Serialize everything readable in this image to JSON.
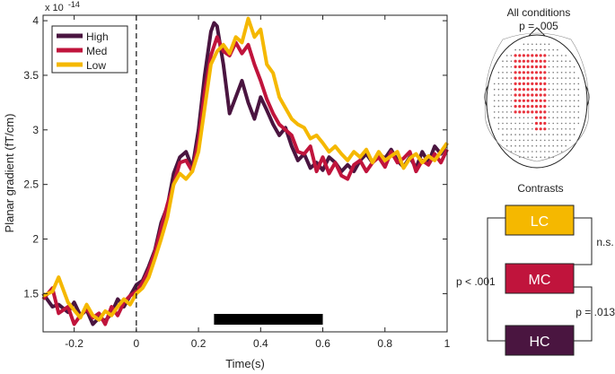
{
  "chart_data": {
    "type": "line",
    "title": "",
    "xlabel": "Time(s)",
    "ylabel": "Planar gradient (fT/cm)",
    "exponent_label": "x 10",
    "exponent_power": "-14",
    "xlim": [
      -0.3,
      1.0
    ],
    "ylim": [
      1.15,
      4.05
    ],
    "xticks": [
      -0.2,
      0,
      0.2,
      0.4,
      0.6,
      0.8,
      1
    ],
    "xtick_labels": [
      "-0.2",
      "0",
      "0.2",
      "0.4",
      "0.6",
      "0.8",
      "1"
    ],
    "yticks": [
      1.5,
      2,
      2.5,
      3,
      3.5,
      4
    ],
    "ytick_labels": [
      "1.5",
      "2",
      "2.5",
      "3",
      "3.5",
      "4"
    ],
    "stimulus_onset": 0,
    "significance_bar": [
      0.25,
      0.6
    ],
    "series": [
      {
        "name": "High",
        "color": "#4a1540",
        "x": [
          -0.3,
          -0.27,
          -0.25,
          -0.22,
          -0.2,
          -0.18,
          -0.16,
          -0.14,
          -0.12,
          -0.1,
          -0.08,
          -0.06,
          -0.04,
          -0.02,
          0,
          0.02,
          0.04,
          0.06,
          0.08,
          0.1,
          0.12,
          0.14,
          0.16,
          0.18,
          0.2,
          0.22,
          0.24,
          0.25,
          0.26,
          0.28,
          0.3,
          0.32,
          0.34,
          0.36,
          0.38,
          0.4,
          0.42,
          0.44,
          0.46,
          0.48,
          0.5,
          0.52,
          0.54,
          0.56,
          0.58,
          0.6,
          0.62,
          0.64,
          0.66,
          0.68,
          0.7,
          0.72,
          0.74,
          0.76,
          0.78,
          0.8,
          0.82,
          0.84,
          0.86,
          0.88,
          0.9,
          0.92,
          0.94,
          0.96,
          0.98,
          1.0
        ],
        "y": [
          1.5,
          1.38,
          1.4,
          1.33,
          1.42,
          1.3,
          1.35,
          1.22,
          1.28,
          1.25,
          1.32,
          1.45,
          1.38,
          1.48,
          1.58,
          1.62,
          1.75,
          1.9,
          2.15,
          2.3,
          2.6,
          2.75,
          2.8,
          2.65,
          3.0,
          3.5,
          3.9,
          3.98,
          3.95,
          3.6,
          3.15,
          3.3,
          3.45,
          3.25,
          3.1,
          3.3,
          3.18,
          3.05,
          2.95,
          3.02,
          2.85,
          2.72,
          2.78,
          2.65,
          2.7,
          2.63,
          2.75,
          2.7,
          2.62,
          2.68,
          2.62,
          2.72,
          2.78,
          2.7,
          2.78,
          2.74,
          2.82,
          2.72,
          2.66,
          2.75,
          2.65,
          2.8,
          2.7,
          2.85,
          2.78,
          2.88
        ]
      },
      {
        "name": "Med",
        "color": "#c0143c",
        "x": [
          -0.3,
          -0.27,
          -0.25,
          -0.22,
          -0.2,
          -0.18,
          -0.16,
          -0.14,
          -0.12,
          -0.1,
          -0.08,
          -0.06,
          -0.04,
          -0.02,
          0,
          0.02,
          0.04,
          0.06,
          0.08,
          0.1,
          0.12,
          0.14,
          0.16,
          0.18,
          0.2,
          0.22,
          0.24,
          0.26,
          0.28,
          0.3,
          0.32,
          0.34,
          0.36,
          0.38,
          0.4,
          0.42,
          0.44,
          0.46,
          0.48,
          0.5,
          0.52,
          0.54,
          0.56,
          0.58,
          0.6,
          0.62,
          0.64,
          0.66,
          0.68,
          0.7,
          0.72,
          0.74,
          0.76,
          0.78,
          0.8,
          0.82,
          0.84,
          0.86,
          0.88,
          0.9,
          0.92,
          0.94,
          0.96,
          0.98,
          1.0
        ],
        "y": [
          1.45,
          1.55,
          1.32,
          1.38,
          1.22,
          1.3,
          1.36,
          1.28,
          1.32,
          1.22,
          1.38,
          1.3,
          1.42,
          1.48,
          1.52,
          1.6,
          1.72,
          1.88,
          2.1,
          2.32,
          2.5,
          2.7,
          2.72,
          2.62,
          2.9,
          3.35,
          3.68,
          3.85,
          3.72,
          3.68,
          3.8,
          3.7,
          3.78,
          3.6,
          3.45,
          3.28,
          3.15,
          3.05,
          3.0,
          2.95,
          2.8,
          2.78,
          2.85,
          2.62,
          2.75,
          2.6,
          2.7,
          2.58,
          2.55,
          2.68,
          2.72,
          2.62,
          2.7,
          2.75,
          2.66,
          2.8,
          2.7,
          2.74,
          2.8,
          2.62,
          2.72,
          2.68,
          2.78,
          2.7,
          2.82
        ]
      },
      {
        "name": "Low",
        "color": "#f5b800",
        "x": [
          -0.3,
          -0.27,
          -0.25,
          -0.22,
          -0.2,
          -0.18,
          -0.16,
          -0.14,
          -0.12,
          -0.1,
          -0.08,
          -0.06,
          -0.04,
          -0.02,
          0,
          0.02,
          0.04,
          0.06,
          0.08,
          0.1,
          0.12,
          0.14,
          0.16,
          0.18,
          0.2,
          0.22,
          0.24,
          0.26,
          0.28,
          0.3,
          0.32,
          0.34,
          0.36,
          0.38,
          0.4,
          0.42,
          0.44,
          0.46,
          0.48,
          0.5,
          0.52,
          0.54,
          0.56,
          0.58,
          0.6,
          0.62,
          0.64,
          0.66,
          0.68,
          0.7,
          0.72,
          0.74,
          0.76,
          0.78,
          0.8,
          0.82,
          0.84,
          0.86,
          0.88,
          0.9,
          0.92,
          0.94,
          0.96,
          0.98,
          1.0
        ],
        "y": [
          1.48,
          1.52,
          1.65,
          1.42,
          1.35,
          1.28,
          1.4,
          1.3,
          1.26,
          1.34,
          1.3,
          1.38,
          1.45,
          1.4,
          1.5,
          1.55,
          1.65,
          1.82,
          2.0,
          2.2,
          2.5,
          2.6,
          2.55,
          2.62,
          2.8,
          3.2,
          3.6,
          3.72,
          3.78,
          3.7,
          3.85,
          3.8,
          4.02,
          3.85,
          3.92,
          3.6,
          3.52,
          3.3,
          3.2,
          3.1,
          3.05,
          3.02,
          2.92,
          2.95,
          2.88,
          2.8,
          2.85,
          2.78,
          2.72,
          2.8,
          2.75,
          2.82,
          2.7,
          2.8,
          2.72,
          2.76,
          2.8,
          2.65,
          2.74,
          2.78,
          2.7,
          2.76,
          2.72,
          2.8,
          2.88
        ]
      }
    ]
  },
  "topomap": {
    "title": "All conditions",
    "p_value": "p = .005"
  },
  "contrasts": {
    "title": "Contrasts",
    "boxes": [
      {
        "label": "LC",
        "color": "#f5b800"
      },
      {
        "label": "MC",
        "color": "#c0143c"
      },
      {
        "label": "HC",
        "color": "#4a1540"
      }
    ],
    "lc_mc": "n.s.",
    "mc_hc": "p = .013",
    "lc_hc": "p < .001"
  }
}
